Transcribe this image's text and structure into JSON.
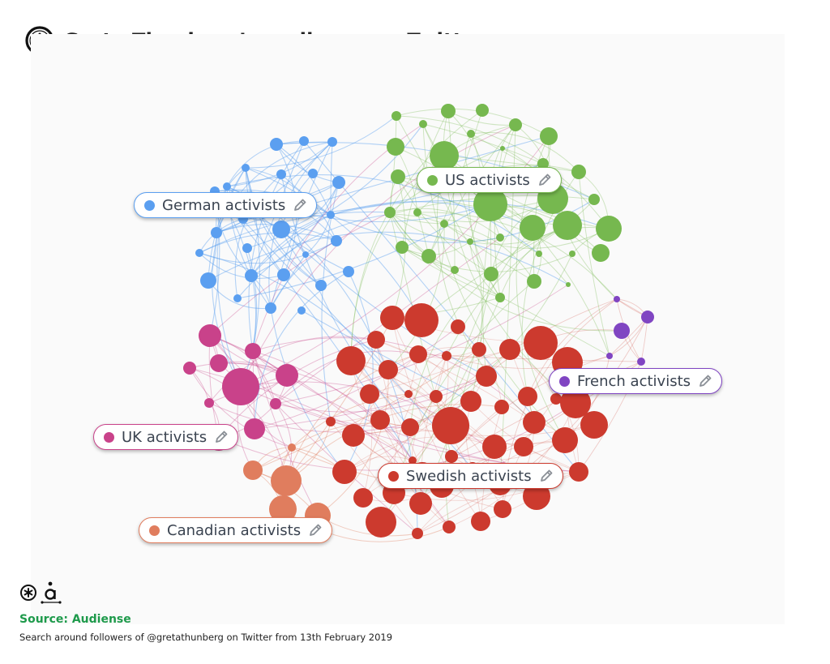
{
  "header": {
    "title": "Greta Thunberg’s audience on Twitter",
    "logo": "asterisk-circle-logo"
  },
  "clusters": [
    {
      "id": "german",
      "label": "German activists",
      "color": "#5b9ff0"
    },
    {
      "id": "us",
      "label": "US activists",
      "color": "#76b84f"
    },
    {
      "id": "french",
      "label": "French activists",
      "color": "#8045c2"
    },
    {
      "id": "uk",
      "label": "UK activists",
      "color": "#c9428a"
    },
    {
      "id": "swedish",
      "label": "Swedish activists",
      "color": "#cc3a2e"
    },
    {
      "id": "canadian",
      "label": "Canadian activists",
      "color": "#e07d5e"
    }
  ],
  "label_icon": "pencil-icon",
  "footer": {
    "source": "Source: Audiense",
    "caption": "Search around followers of @gretathunberg on Twitter from 13th February 2019",
    "logos": [
      "asterisk-circle-logo",
      "audiense-logo"
    ]
  }
}
